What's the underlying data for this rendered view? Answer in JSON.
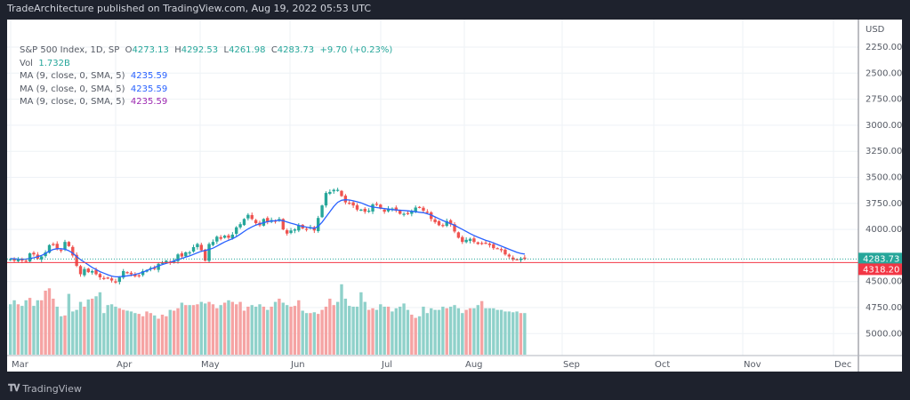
{
  "publication": "TradeArchitecture published on TradingView.com, Aug 19, 2022 05:53 UTC",
  "legend": {
    "symbol": "S&P 500 Index, 1D, SP",
    "open_label": "O",
    "open": "4273.13",
    "high_label": "H",
    "high": "4292.53",
    "low_label": "L",
    "low": "4261.98",
    "close_label": "C",
    "close": "4283.73",
    "change": "+9.70 (+0.23%)",
    "vol_label": "Vol",
    "vol": "1.732B",
    "ma_rows": [
      {
        "label": "MA (9, close, 0, SMA, 5)",
        "value": "4235.59"
      },
      {
        "label": "MA (9, close, 0, SMA, 5)",
        "value": "4235.59"
      },
      {
        "label": "MA (9, close, 0, SMA, 5)",
        "value": "4235.59"
      }
    ]
  },
  "branding": {
    "logo_text": "TradingView"
  },
  "colors": {
    "up": "#26a69a",
    "down": "#ef5350",
    "vol_up": "#8fd1ca",
    "vol_down": "#f5a3a3",
    "ma": "#2962ff",
    "ma_purple": "#9c27b0",
    "last_price": "#26a69a",
    "prev_close": "#f23645"
  },
  "chart_data": {
    "type": "candlestick",
    "title": "S&P 500 Index, 1D, SP",
    "y_axis": {
      "label": "USD",
      "inverted": true,
      "range": [
        2000,
        5200
      ],
      "ticks": [
        "2250.00",
        "2500.00",
        "2750.00",
        "3000.00",
        "3250.00",
        "3500.00",
        "3750.00",
        "4000.00",
        "4500.00",
        "4750.00",
        "5000.00"
      ],
      "tick_values": [
        2250,
        2500,
        2750,
        3000,
        3250,
        3500,
        3750,
        4000,
        4500,
        4750,
        5000
      ]
    },
    "x_axis": {
      "ticks": [
        "Mar",
        "Apr",
        "May",
        "Jun",
        "Jul",
        "Aug",
        "Sep",
        "Oct",
        "Nov",
        "Dec"
      ]
    },
    "price_labels": [
      {
        "value": 4283.73,
        "text": "4283.73",
        "kind": "last"
      },
      {
        "value": 4318.2,
        "text": "4318.20",
        "kind": "previous-close"
      }
    ],
    "grid": true,
    "candles_close": [
      4285,
      4300,
      4290,
      4300,
      4300,
      4230,
      4240,
      4280,
      4260,
      4220,
      4150,
      4140,
      4190,
      4200,
      4120,
      4160,
      4250,
      4350,
      4430,
      4380,
      4410,
      4400,
      4430,
      4460,
      4470,
      4470,
      4490,
      4510,
      4460,
      4400,
      4420,
      4430,
      4450,
      4440,
      4400,
      4390,
      4370,
      4380,
      4330,
      4320,
      4300,
      4320,
      4300,
      4240,
      4260,
      4220,
      4220,
      4170,
      4140,
      4200,
      4300,
      4140,
      4120,
      4070,
      4090,
      4060,
      4080,
      4050,
      3980,
      3950,
      3900,
      3860,
      3900,
      3940,
      3960,
      3900,
      3930,
      3910,
      3920,
      3900,
      4000,
      4040,
      4010,
      4000,
      3960,
      3990,
      4000,
      3980,
      4010,
      3890,
      3770,
      3650,
      3640,
      3620,
      3620,
      3680,
      3740,
      3750,
      3770,
      3810,
      3810,
      3830,
      3820,
      3760,
      3760,
      3800,
      3830,
      3800,
      3800,
      3820,
      3850,
      3850,
      3850,
      3820,
      3790,
      3790,
      3820,
      3840,
      3900,
      3930,
      3960,
      3960,
      3920,
      3950,
      4020,
      4080,
      4120,
      4100,
      4090,
      4120,
      4140,
      4130,
      4130,
      4150,
      4180,
      4180,
      4200,
      4240,
      4260,
      4290,
      4290,
      4280,
      4284
    ],
    "ma_values": [
      4280,
      4282,
      4285,
      4286,
      4285,
      4280,
      4272,
      4262,
      4250,
      4230,
      4208,
      4192,
      4185,
      4185,
      4190,
      4205,
      4228,
      4260,
      4290,
      4315,
      4340,
      4365,
      4385,
      4405,
      4420,
      4435,
      4448,
      4455,
      4455,
      4450,
      4445,
      4440,
      4432,
      4422,
      4410,
      4395,
      4380,
      4365,
      4350,
      4337,
      4325,
      4315,
      4302,
      4290,
      4278,
      4266,
      4254,
      4240,
      4224,
      4210,
      4202,
      4192,
      4180,
      4160,
      4140,
      4120,
      4104,
      4090,
      4070,
      4045,
      4020,
      3995,
      3975,
      3958,
      3945,
      3935,
      3926,
      3920,
      3916,
      3912,
      3916,
      3928,
      3940,
      3950,
      3962,
      3970,
      3978,
      3984,
      3990,
      3970,
      3930,
      3880,
      3830,
      3780,
      3740,
      3720,
      3715,
      3718,
      3725,
      3735,
      3745,
      3760,
      3775,
      3785,
      3790,
      3795,
      3800,
      3805,
      3810,
      3813,
      3816,
      3818,
      3822,
      3826,
      3830,
      3835,
      3840,
      3850,
      3862,
      3880,
      3898,
      3915,
      3930,
      3945,
      3960,
      3980,
      4000,
      4020,
      4040,
      4058,
      4075,
      4090,
      4105,
      4115,
      4130,
      4145,
      4160,
      4175,
      4190,
      4205,
      4220,
      4230,
      4236
    ],
    "volume_rel": [
      0.63,
      0.68,
      0.63,
      0.61,
      0.68,
      0.71,
      0.61,
      0.68,
      0.68,
      0.8,
      0.83,
      0.7,
      0.6,
      0.48,
      0.49,
      0.76,
      0.54,
      0.56,
      0.66,
      0.6,
      0.69,
      0.7,
      0.73,
      0.78,
      0.52,
      0.62,
      0.63,
      0.6,
      0.58,
      0.56,
      0.55,
      0.54,
      0.52,
      0.51,
      0.48,
      0.54,
      0.52,
      0.49,
      0.45,
      0.5,
      0.48,
      0.56,
      0.55,
      0.58,
      0.65,
      0.62,
      0.62,
      0.62,
      0.63,
      0.66,
      0.64,
      0.66,
      0.63,
      0.58,
      0.62,
      0.65,
      0.68,
      0.66,
      0.63,
      0.66,
      0.55,
      0.6,
      0.62,
      0.6,
      0.63,
      0.6,
      0.56,
      0.6,
      0.66,
      0.7,
      0.65,
      0.62,
      0.6,
      0.61,
      0.68,
      0.55,
      0.52,
      0.52,
      0.53,
      0.51,
      0.56,
      0.6,
      0.7,
      0.62,
      0.66,
      0.88,
      0.7,
      0.61,
      0.6,
      0.6,
      0.78,
      0.66,
      0.56,
      0.58,
      0.56,
      0.63,
      0.6,
      0.6,
      0.54,
      0.58,
      0.6,
      0.64,
      0.56,
      0.5,
      0.46,
      0.48,
      0.6,
      0.52,
      0.58,
      0.56,
      0.56,
      0.6,
      0.58,
      0.6,
      0.62,
      0.58,
      0.52,
      0.56,
      0.58,
      0.58,
      0.62,
      0.67,
      0.58,
      0.58,
      0.58,
      0.56,
      0.56,
      0.54,
      0.54,
      0.53,
      0.54,
      0.52,
      0.52
    ]
  }
}
